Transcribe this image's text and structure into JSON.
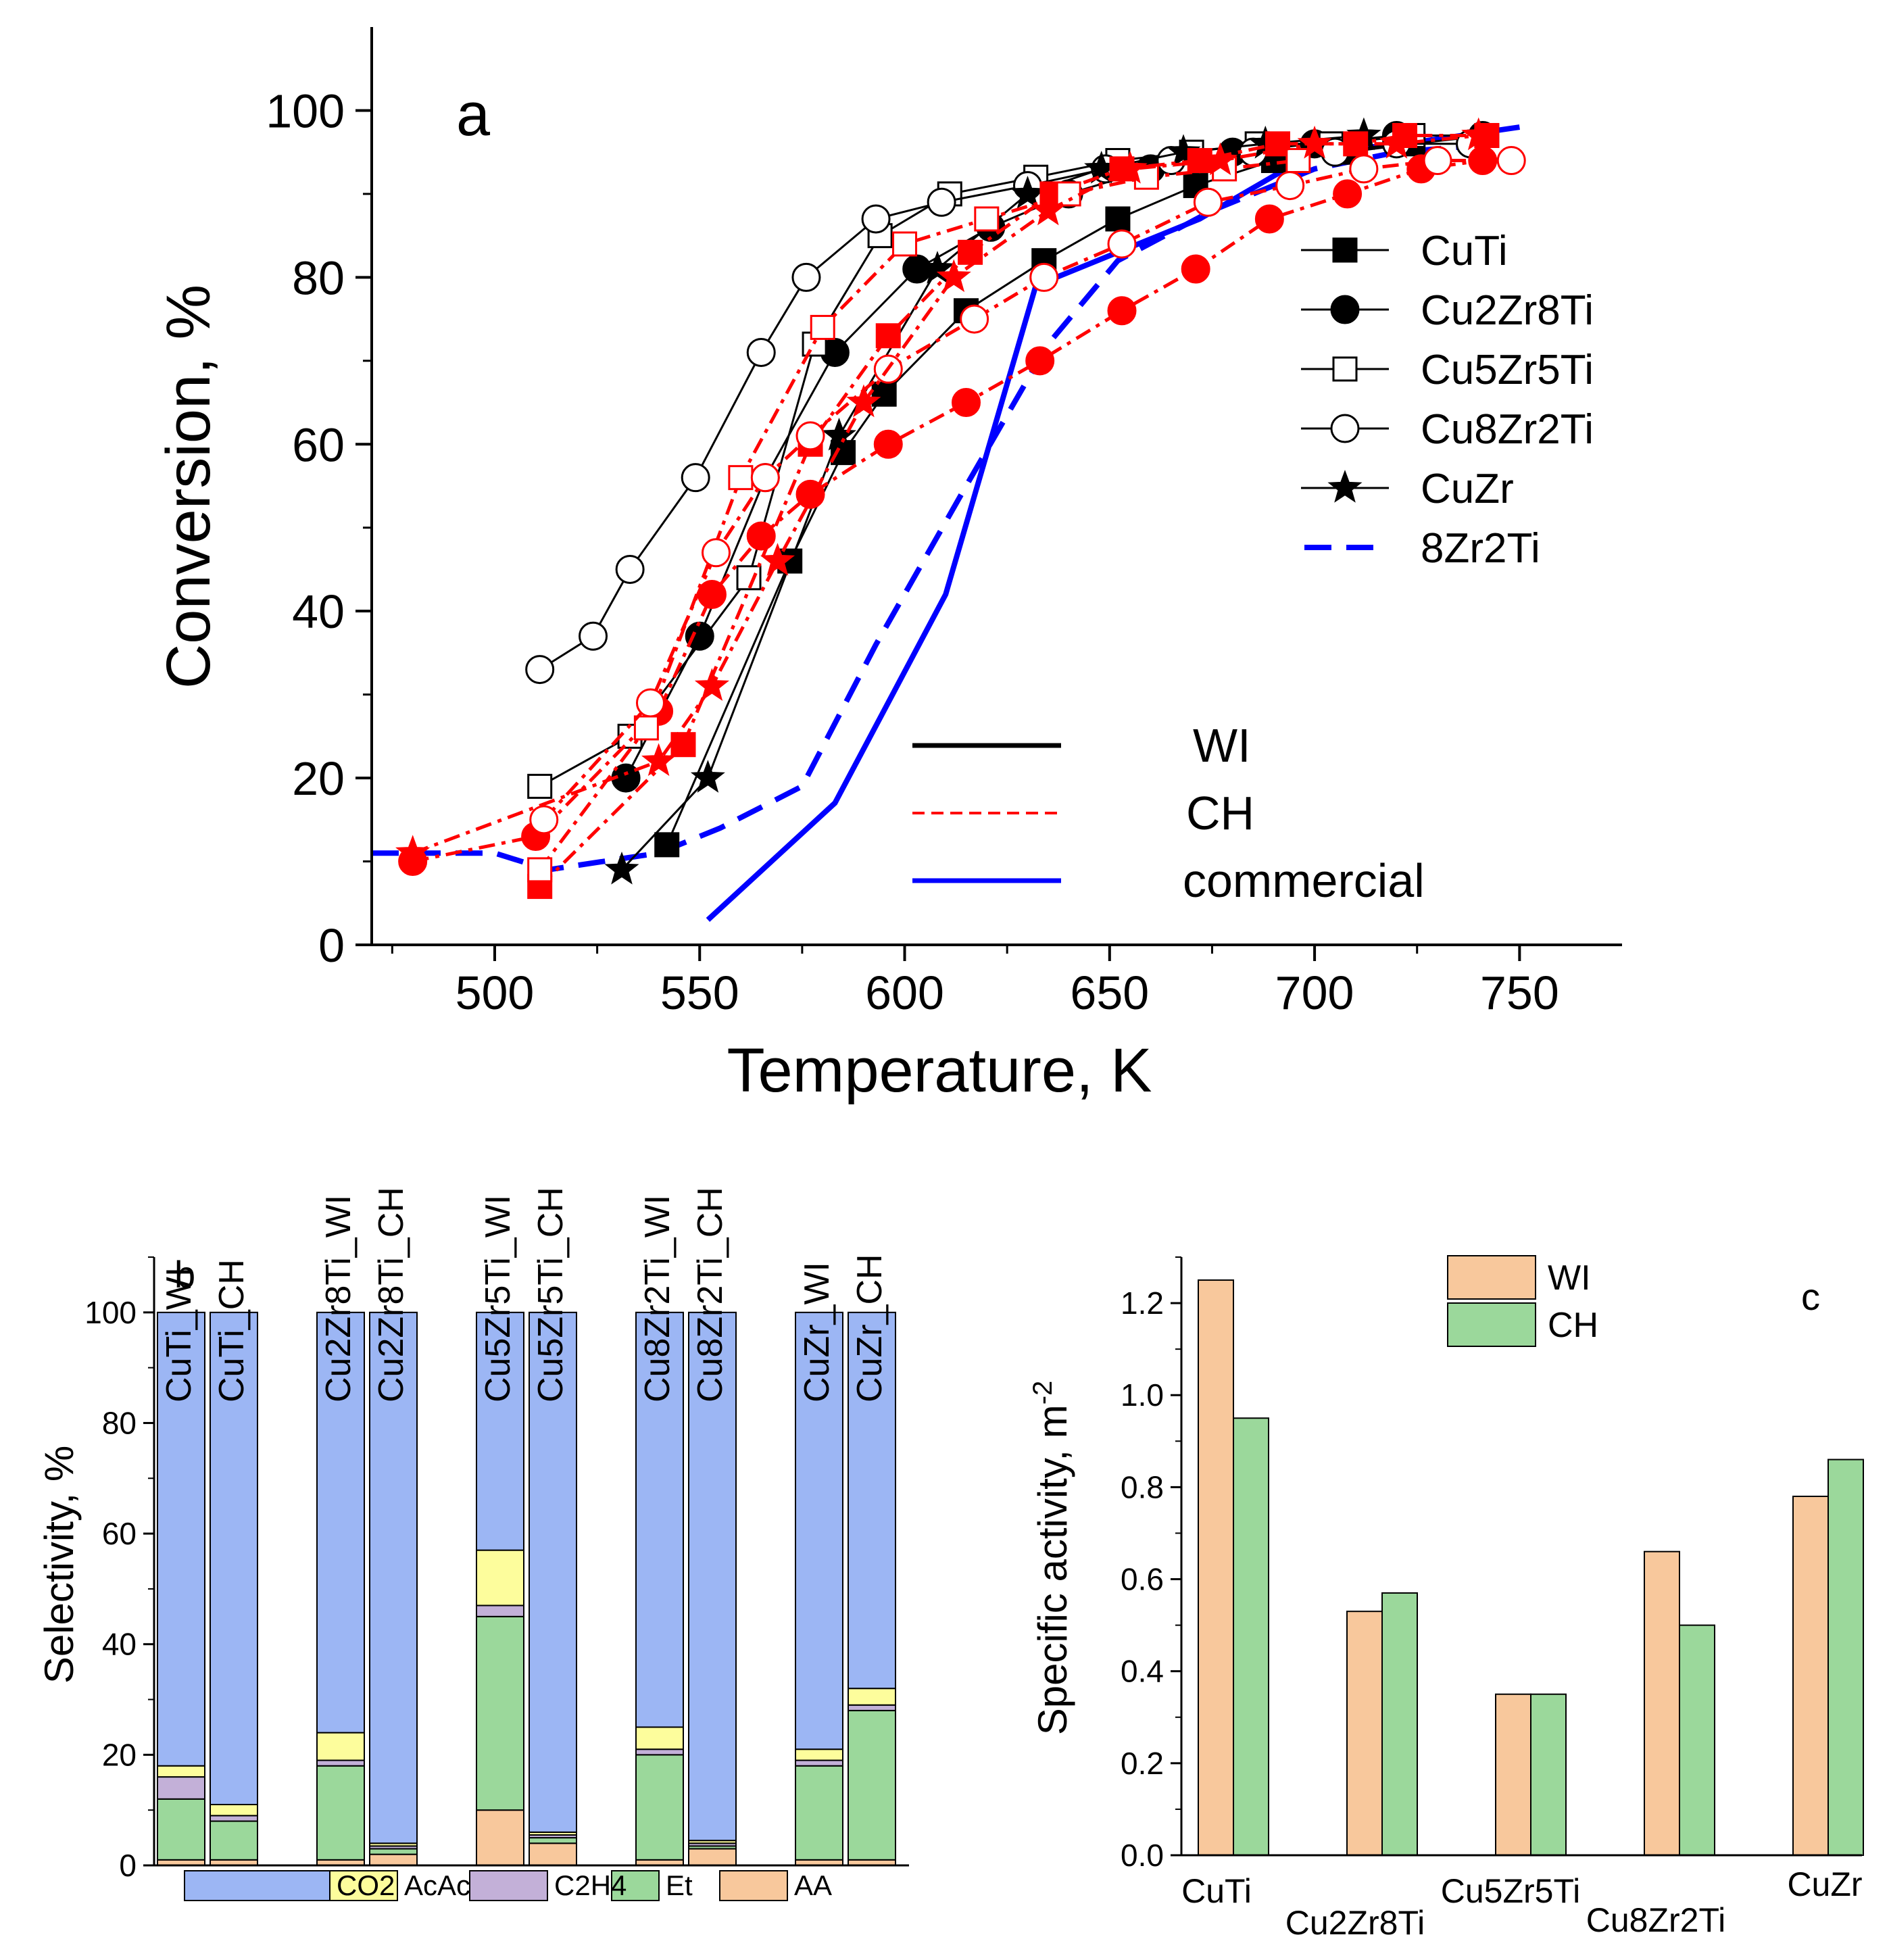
{
  "chart_data": [
    {
      "id": "a",
      "type": "line",
      "panel_label": "a",
      "xlabel": "Temperature, K",
      "ylabel": "Conversion, %",
      "xlim": [
        470,
        775
      ],
      "ylim": [
        0,
        110
      ],
      "xticks": [
        500,
        550,
        600,
        650,
        700,
        750
      ],
      "yticks": [
        0,
        20,
        40,
        60,
        80,
        100
      ],
      "colors": {
        "WI": "#000000",
        "CH": "#ff0000",
        "commercial": "#0000ff"
      },
      "series": [
        {
          "name": "CuTi",
          "method": "WI",
          "marker": "square",
          "fill": "filled",
          "x": [
            542,
            572,
            585,
            595,
            615,
            634,
            652,
            671,
            690,
            708,
            724,
            742
          ],
          "y": [
            12,
            46,
            59,
            66,
            76,
            82,
            87,
            91,
            94,
            95,
            96,
            97
          ]
        },
        {
          "name": "Cu2Zr8Ti",
          "method": "WI",
          "marker": "circle",
          "fill": "filled",
          "x": [
            532,
            550,
            566,
            583,
            603,
            621,
            640,
            660,
            680,
            700,
            720,
            741
          ],
          "y": [
            20,
            37,
            56,
            71,
            81,
            86,
            90,
            93,
            95,
            96,
            97,
            97
          ]
        },
        {
          "name": "Cu5Zr5Ti",
          "method": "WI",
          "marker": "square",
          "fill": "open",
          "x": [
            511,
            533,
            562,
            578,
            594,
            611,
            632,
            652,
            670,
            686,
            704,
            724
          ],
          "y": [
            19,
            25,
            44,
            72,
            85,
            90,
            92,
            94,
            95,
            96,
            96,
            97
          ]
        },
        {
          "name": "Cu8Zr2Ti",
          "method": "WI",
          "marker": "circle",
          "fill": "open",
          "x": [
            511,
            524,
            533,
            549,
            565,
            576,
            593,
            609,
            630,
            649,
            665,
            685,
            705,
            720,
            738
          ],
          "y": [
            33,
            37,
            45,
            56,
            71,
            80,
            87,
            89,
            91,
            93,
            94,
            95,
            95,
            96,
            96
          ]
        },
        {
          "name": "CuZr",
          "method": "WI",
          "marker": "star",
          "fill": "filled",
          "x": [
            531,
            552,
            584,
            608,
            630,
            648,
            668,
            688,
            712
          ],
          "y": [
            9,
            20,
            61,
            81,
            90,
            93,
            95,
            96,
            97
          ]
        },
        {
          "name": "CuTi",
          "method": "CH",
          "marker": "square",
          "fill": "filled",
          "x": [
            511,
            546,
            577,
            596,
            616,
            636,
            653,
            672,
            691,
            710,
            722,
            742
          ],
          "y": [
            7,
            24,
            60,
            73,
            83,
            90,
            93,
            94,
            96,
            96,
            97,
            97
          ]
        },
        {
          "name": "Cu2Zr8Ti",
          "method": "CH",
          "marker": "circle",
          "fill": "filled",
          "x": [
            480,
            510,
            540,
            553,
            565,
            577,
            596,
            615,
            633,
            653,
            671,
            689,
            708,
            726,
            741
          ],
          "y": [
            10,
            13,
            28,
            42,
            49,
            54,
            60,
            65,
            70,
            76,
            81,
            87,
            90,
            93,
            94
          ]
        },
        {
          "name": "Cu5Zr5Ti",
          "method": "CH",
          "marker": "square",
          "fill": "open",
          "x": [
            511,
            537,
            560,
            580,
            600,
            620,
            640,
            659,
            678,
            696
          ],
          "y": [
            9,
            26,
            56,
            74,
            84,
            87,
            90,
            92,
            93,
            94
          ]
        },
        {
          "name": "Cu8Zr2Ti",
          "method": "CH",
          "marker": "circle",
          "fill": "open",
          "x": [
            512,
            538,
            554,
            566,
            577,
            596,
            617,
            634,
            653,
            674,
            694,
            712,
            730,
            748
          ],
          "y": [
            15,
            29,
            47,
            56,
            61,
            69,
            75,
            80,
            84,
            89,
            91,
            93,
            94,
            94
          ]
        },
        {
          "name": "CuZr",
          "method": "CH",
          "marker": "star",
          "fill": "filled",
          "x": [
            480,
            540,
            553,
            569,
            590,
            612,
            635,
            655,
            677,
            700,
            720,
            740
          ],
          "y": [
            11,
            22,
            31,
            46,
            65,
            80,
            88,
            93,
            94,
            96,
            96,
            97
          ]
        },
        {
          "name": "8Zr2Ti",
          "method": "commercial",
          "marker": "none",
          "style": "dashed",
          "x": [
            470,
            500,
            513,
            540,
            555,
            575,
            593,
            615,
            635,
            652,
            675,
            700,
            720,
            745
          ],
          "y": [
            11,
            11,
            9,
            11,
            14,
            19,
            36,
            55,
            72,
            82,
            88,
            93,
            95,
            96
          ]
        },
        {
          "name": "commercial",
          "method": "commercial",
          "marker": "none",
          "style": "solid",
          "x": [
            552,
            583,
            610,
            632,
            652,
            672,
            700,
            722,
            750
          ],
          "y": [
            3,
            17,
            42,
            79,
            83,
            87,
            95,
            96,
            98
          ]
        }
      ],
      "legend_samples": [
        {
          "name": "CuTi",
          "marker": "square",
          "fill": "filled"
        },
        {
          "name": "Cu2Zr8Ti",
          "marker": "circle",
          "fill": "filled"
        },
        {
          "name": "Cu5Zr5Ti",
          "marker": "square",
          "fill": "open"
        },
        {
          "name": "Cu8Zr2Ti",
          "marker": "circle",
          "fill": "open"
        },
        {
          "name": "CuZr",
          "marker": "star",
          "fill": "filled"
        },
        {
          "name": "8Zr2Ti",
          "marker": "none",
          "fill": "dashed"
        }
      ],
      "legend_methods": [
        {
          "name": "WI",
          "style": "solid-black"
        },
        {
          "name": "CH",
          "style": "dashed-red"
        },
        {
          "name": "commercial",
          "style": "solid-blue"
        }
      ]
    },
    {
      "id": "b",
      "type": "bar",
      "subtype": "stacked",
      "panel_label": "b",
      "ylabel": "Selectivity, %",
      "ylim": [
        0,
        110
      ],
      "yticks": [
        0,
        20,
        40,
        60,
        80,
        100
      ],
      "components": [
        {
          "name": "AA",
          "color": "#f8c89c"
        },
        {
          "name": "Et",
          "color": "#9bd89b"
        },
        {
          "name": "C2H4",
          "color": "#c3b0d8"
        },
        {
          "name": "AcAc",
          "color": "#fdfd9c"
        },
        {
          "name": "CO2",
          "color": "#9cb6f4"
        }
      ],
      "legend_order": [
        "CO2",
        "AcAc",
        "C2H4",
        "Et",
        "AA"
      ],
      "categories": [
        "CuTi_WI",
        "CuTi_CH",
        "Cu2Zr8Ti_WI",
        "Cu2Zr8Ti_CH",
        "Cu5Zr5Ti_WI",
        "Cu5Zr5Ti_CH",
        "Cu8Zr2Ti_WI",
        "Cu8Zr2Ti_CH",
        "CuZr_WI",
        "CuZr_CH"
      ],
      "series": [
        {
          "name": "AA",
          "values": [
            1,
            1,
            1,
            2,
            10,
            4,
            1,
            3,
            1,
            1
          ]
        },
        {
          "name": "Et",
          "values": [
            11,
            7,
            17,
            1,
            35,
            1,
            19,
            0.5,
            17,
            27
          ]
        },
        {
          "name": "C2H4",
          "values": [
            4,
            1,
            1,
            0.5,
            2,
            0.5,
            1,
            0.5,
            1,
            1
          ]
        },
        {
          "name": "AcAc",
          "values": [
            2,
            2,
            5,
            0.5,
            10,
            0.5,
            4,
            0.5,
            2,
            3
          ]
        },
        {
          "name": "CO2",
          "values": [
            82,
            89,
            76,
            96,
            43,
            94,
            75,
            95.5,
            79,
            68
          ]
        }
      ]
    },
    {
      "id": "c",
      "type": "bar",
      "subtype": "grouped",
      "panel_label": "c",
      "ylabel": "Specific activity, m",
      "ylabel_superscript": "-2",
      "ylim": [
        0,
        1.3
      ],
      "yticks": [
        "0.0",
        "0.2",
        "0.4",
        "0.6",
        "0.8",
        "1.0",
        "1.2"
      ],
      "categories": [
        "CuTi",
        "Cu2Zr8Ti",
        "Cu5Zr5Ti",
        "Cu8Zr2Ti",
        "CuZr"
      ],
      "series": [
        {
          "name": "WI",
          "color": "#f8c89c",
          "values": [
            1.25,
            0.53,
            0.35,
            0.66,
            0.78
          ]
        },
        {
          "name": "CH",
          "color": "#9bd89b",
          "values": [
            0.95,
            0.57,
            0.35,
            0.5,
            0.86
          ]
        }
      ]
    }
  ]
}
